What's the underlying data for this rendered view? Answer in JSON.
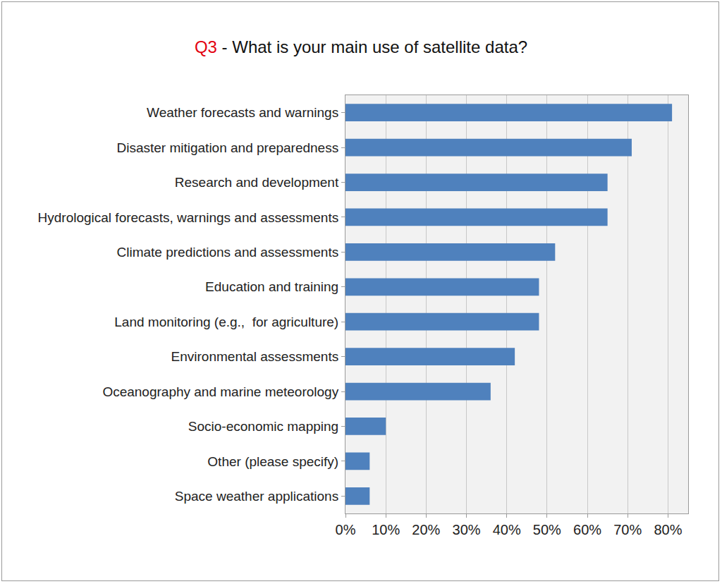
{
  "chart_data": {
    "type": "bar",
    "orientation": "horizontal",
    "title": "Q3 - What is your main use of satellite data?",
    "categories": [
      "Weather forecasts and warnings",
      "Disaster mitigation and preparedness",
      "Research and development",
      "Hydrological forecasts, warnings and assessments",
      "Climate predictions and assessments",
      "Education and training",
      "Land monitoring (e.g.,  for agriculture)",
      "Environmental assessments",
      "Oceanography and marine meteorology",
      "Socio-economic mapping",
      "Other (please specify)",
      "Space weather applications"
    ],
    "values": [
      81,
      71,
      65,
      65,
      52,
      48,
      48,
      42,
      36,
      10,
      6,
      6
    ],
    "color": "#4f81bd",
    "xlim": [
      0,
      85
    ],
    "xticks": [
      {
        "value": 0,
        "label": "0%"
      },
      {
        "value": 10,
        "label": "10%"
      },
      {
        "value": 20,
        "label": "20%"
      },
      {
        "value": 30,
        "label": "30%"
      },
      {
        "value": 40,
        "label": "40%"
      },
      {
        "value": 50,
        "label": "50%"
      },
      {
        "value": 60,
        "label": "60%"
      },
      {
        "value": 70,
        "label": "70%"
      },
      {
        "value": 80,
        "label": "80%"
      }
    ],
    "grid": true
  }
}
